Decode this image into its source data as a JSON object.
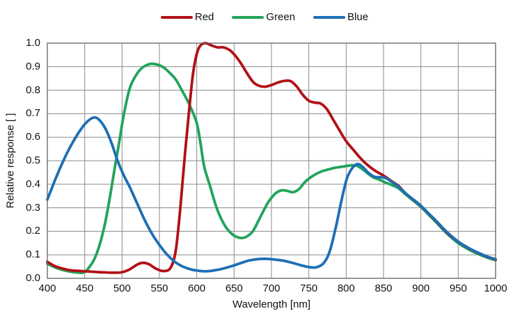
{
  "chart_data": {
    "type": "line",
    "title": "",
    "xlabel": "Wavelength [nm]",
    "ylabel": "Relative response [ ]",
    "xlim": [
      400,
      1000
    ],
    "ylim": [
      0,
      1.0
    ],
    "grid": true,
    "legend_position": "top-center",
    "x_ticks": [
      "400",
      "450",
      "500",
      "550",
      "600",
      "650",
      "700",
      "750",
      "800",
      "850",
      "900",
      "950",
      "1000"
    ],
    "y_ticks": [
      "0.0",
      "0.1",
      "0.2",
      "0.3",
      "0.4",
      "0.5",
      "0.6",
      "0.7",
      "0.8",
      "0.9",
      "1.0"
    ],
    "grid_color": "#8a8a8a",
    "frame_color": "#606060",
    "draw_order": [
      1,
      0,
      2
    ],
    "series": [
      {
        "name": "Red",
        "color": "#b01116",
        "points": [
          [
            400,
            0.07
          ],
          [
            410,
            0.052
          ],
          [
            420,
            0.042
          ],
          [
            430,
            0.035
          ],
          [
            440,
            0.032
          ],
          [
            450,
            0.03
          ],
          [
            460,
            0.028
          ],
          [
            470,
            0.026
          ],
          [
            480,
            0.025
          ],
          [
            490,
            0.024
          ],
          [
            500,
            0.026
          ],
          [
            510,
            0.038
          ],
          [
            520,
            0.058
          ],
          [
            528,
            0.066
          ],
          [
            536,
            0.06
          ],
          [
            545,
            0.042
          ],
          [
            555,
            0.031
          ],
          [
            565,
            0.045
          ],
          [
            572,
            0.12
          ],
          [
            578,
            0.3
          ],
          [
            584,
            0.52
          ],
          [
            590,
            0.72
          ],
          [
            595,
            0.87
          ],
          [
            600,
            0.955
          ],
          [
            605,
            0.99
          ],
          [
            612,
            1.0
          ],
          [
            620,
            0.99
          ],
          [
            628,
            0.982
          ],
          [
            636,
            0.982
          ],
          [
            645,
            0.968
          ],
          [
            652,
            0.945
          ],
          [
            660,
            0.91
          ],
          [
            668,
            0.868
          ],
          [
            676,
            0.833
          ],
          [
            684,
            0.818
          ],
          [
            692,
            0.815
          ],
          [
            700,
            0.822
          ],
          [
            710,
            0.834
          ],
          [
            718,
            0.84
          ],
          [
            726,
            0.838
          ],
          [
            734,
            0.815
          ],
          [
            742,
            0.78
          ],
          [
            750,
            0.755
          ],
          [
            758,
            0.747
          ],
          [
            766,
            0.743
          ],
          [
            774,
            0.72
          ],
          [
            782,
            0.678
          ],
          [
            790,
            0.635
          ],
          [
            800,
            0.583
          ],
          [
            810,
            0.545
          ],
          [
            820,
            0.508
          ],
          [
            830,
            0.478
          ],
          [
            840,
            0.455
          ],
          [
            850,
            0.437
          ],
          [
            860,
            0.415
          ],
          [
            870,
            0.393
          ],
          [
            880,
            0.36
          ],
          [
            890,
            0.334
          ],
          [
            900,
            0.308
          ],
          [
            910,
            0.276
          ],
          [
            920,
            0.244
          ],
          [
            930,
            0.21
          ],
          [
            940,
            0.18
          ],
          [
            950,
            0.155
          ],
          [
            960,
            0.135
          ],
          [
            970,
            0.118
          ],
          [
            980,
            0.103
          ],
          [
            990,
            0.09
          ],
          [
            1000,
            0.08
          ]
        ]
      },
      {
        "name": "Green",
        "color": "#22a45a",
        "points": [
          [
            400,
            0.062
          ],
          [
            410,
            0.047
          ],
          [
            420,
            0.036
          ],
          [
            430,
            0.029
          ],
          [
            440,
            0.025
          ],
          [
            450,
            0.027
          ],
          [
            460,
            0.065
          ],
          [
            466,
            0.105
          ],
          [
            472,
            0.165
          ],
          [
            478,
            0.245
          ],
          [
            484,
            0.35
          ],
          [
            490,
            0.465
          ],
          [
            496,
            0.575
          ],
          [
            502,
            0.69
          ],
          [
            510,
            0.805
          ],
          [
            518,
            0.86
          ],
          [
            526,
            0.893
          ],
          [
            534,
            0.908
          ],
          [
            540,
            0.912
          ],
          [
            548,
            0.908
          ],
          [
            556,
            0.896
          ],
          [
            564,
            0.873
          ],
          [
            572,
            0.845
          ],
          [
            580,
            0.8
          ],
          [
            590,
            0.74
          ],
          [
            600,
            0.66
          ],
          [
            605,
            0.575
          ],
          [
            610,
            0.475
          ],
          [
            618,
            0.39
          ],
          [
            626,
            0.305
          ],
          [
            634,
            0.245
          ],
          [
            642,
            0.205
          ],
          [
            650,
            0.182
          ],
          [
            658,
            0.172
          ],
          [
            666,
            0.176
          ],
          [
            675,
            0.2
          ],
          [
            685,
            0.26
          ],
          [
            695,
            0.32
          ],
          [
            705,
            0.36
          ],
          [
            713,
            0.374
          ],
          [
            721,
            0.372
          ],
          [
            729,
            0.366
          ],
          [
            737,
            0.38
          ],
          [
            745,
            0.41
          ],
          [
            755,
            0.435
          ],
          [
            765,
            0.452
          ],
          [
            775,
            0.462
          ],
          [
            785,
            0.47
          ],
          [
            795,
            0.475
          ],
          [
            805,
            0.48
          ],
          [
            813,
            0.48
          ],
          [
            820,
            0.468
          ],
          [
            828,
            0.448
          ],
          [
            836,
            0.43
          ],
          [
            844,
            0.42
          ],
          [
            852,
            0.408
          ],
          [
            860,
            0.398
          ],
          [
            870,
            0.383
          ],
          [
            880,
            0.356
          ],
          [
            890,
            0.33
          ],
          [
            900,
            0.304
          ],
          [
            910,
            0.272
          ],
          [
            920,
            0.24
          ],
          [
            930,
            0.206
          ],
          [
            940,
            0.176
          ],
          [
            950,
            0.15
          ],
          [
            960,
            0.13
          ],
          [
            970,
            0.113
          ],
          [
            980,
            0.099
          ],
          [
            990,
            0.087
          ],
          [
            1000,
            0.077
          ]
        ]
      },
      {
        "name": "Blue",
        "color": "#1d6fb5",
        "points": [
          [
            400,
            0.335
          ],
          [
            410,
            0.415
          ],
          [
            420,
            0.49
          ],
          [
            430,
            0.555
          ],
          [
            440,
            0.61
          ],
          [
            450,
            0.655
          ],
          [
            458,
            0.678
          ],
          [
            464,
            0.684
          ],
          [
            470,
            0.672
          ],
          [
            478,
            0.635
          ],
          [
            486,
            0.575
          ],
          [
            494,
            0.5
          ],
          [
            502,
            0.44
          ],
          [
            510,
            0.39
          ],
          [
            520,
            0.32
          ],
          [
            530,
            0.25
          ],
          [
            540,
            0.19
          ],
          [
            550,
            0.142
          ],
          [
            560,
            0.102
          ],
          [
            570,
            0.072
          ],
          [
            580,
            0.052
          ],
          [
            590,
            0.04
          ],
          [
            600,
            0.033
          ],
          [
            612,
            0.03
          ],
          [
            624,
            0.034
          ],
          [
            636,
            0.042
          ],
          [
            648,
            0.053
          ],
          [
            660,
            0.066
          ],
          [
            670,
            0.076
          ],
          [
            680,
            0.081
          ],
          [
            692,
            0.083
          ],
          [
            704,
            0.08
          ],
          [
            716,
            0.075
          ],
          [
            728,
            0.066
          ],
          [
            740,
            0.055
          ],
          [
            750,
            0.048
          ],
          [
            760,
            0.047
          ],
          [
            770,
            0.065
          ],
          [
            778,
            0.115
          ],
          [
            786,
            0.215
          ],
          [
            794,
            0.335
          ],
          [
            801,
            0.425
          ],
          [
            808,
            0.468
          ],
          [
            815,
            0.486
          ],
          [
            822,
            0.474
          ],
          [
            830,
            0.448
          ],
          [
            838,
            0.432
          ],
          [
            846,
            0.43
          ],
          [
            853,
            0.426
          ],
          [
            861,
            0.41
          ],
          [
            870,
            0.39
          ],
          [
            880,
            0.36
          ],
          [
            890,
            0.335
          ],
          [
            900,
            0.309
          ],
          [
            910,
            0.277
          ],
          [
            920,
            0.246
          ],
          [
            930,
            0.212
          ],
          [
            940,
            0.182
          ],
          [
            950,
            0.156
          ],
          [
            960,
            0.136
          ],
          [
            970,
            0.119
          ],
          [
            980,
            0.104
          ],
          [
            990,
            0.091
          ],
          [
            1000,
            0.081
          ]
        ]
      }
    ]
  }
}
